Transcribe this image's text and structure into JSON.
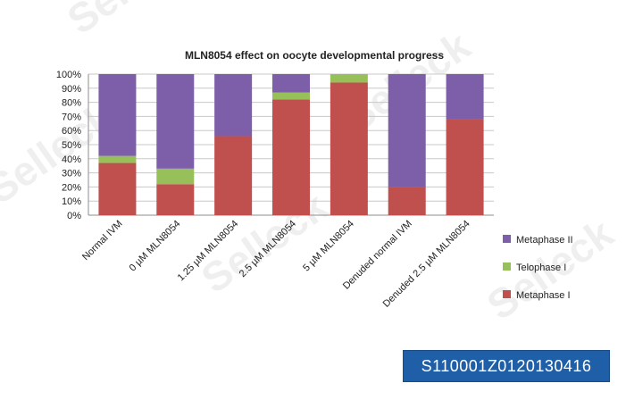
{
  "watermark": "Selleck",
  "catalog_number": "S110001Z0120130416",
  "colors": {
    "metaphase_ii": "#7d5ea8",
    "telophase_i": "#97c05a",
    "metaphase_i": "#c0504d",
    "grid": "#c8c8c8",
    "catalog_box": "#1f5fa8"
  },
  "chart_data": {
    "type": "bar",
    "stacked": true,
    "title": "MLN8054 effect on oocyte developmental progress",
    "xlabel": "",
    "ylabel": "",
    "ylim": [
      0,
      100
    ],
    "y_ticks": [
      "0%",
      "10%",
      "20%",
      "30%",
      "40%",
      "50%",
      "60%",
      "70%",
      "80%",
      "90%",
      "100%"
    ],
    "grid": true,
    "legend_position": "right",
    "categories": [
      "Normal IVM",
      "0 µM MLN8054",
      "1.25 µM MLN8054",
      "2.5 µM MLN8054",
      "5 µM MLN8054",
      "Denuded normal IVM",
      "Denuded 2.5 µM MLN8054"
    ],
    "series": [
      {
        "name": "Metaphase I",
        "color": "#c0504d",
        "values": [
          37,
          22,
          56,
          82,
          94,
          20,
          68
        ]
      },
      {
        "name": "Telophase I",
        "color": "#97c05a",
        "values": [
          5,
          11,
          0,
          5,
          6,
          0,
          0
        ]
      },
      {
        "name": "Metaphase II",
        "color": "#7d5ea8",
        "values": [
          58,
          67,
          44,
          13,
          0,
          80,
          32
        ]
      }
    ],
    "legend_order": [
      "Metaphase II",
      "Telophase I",
      "Metaphase I"
    ]
  }
}
